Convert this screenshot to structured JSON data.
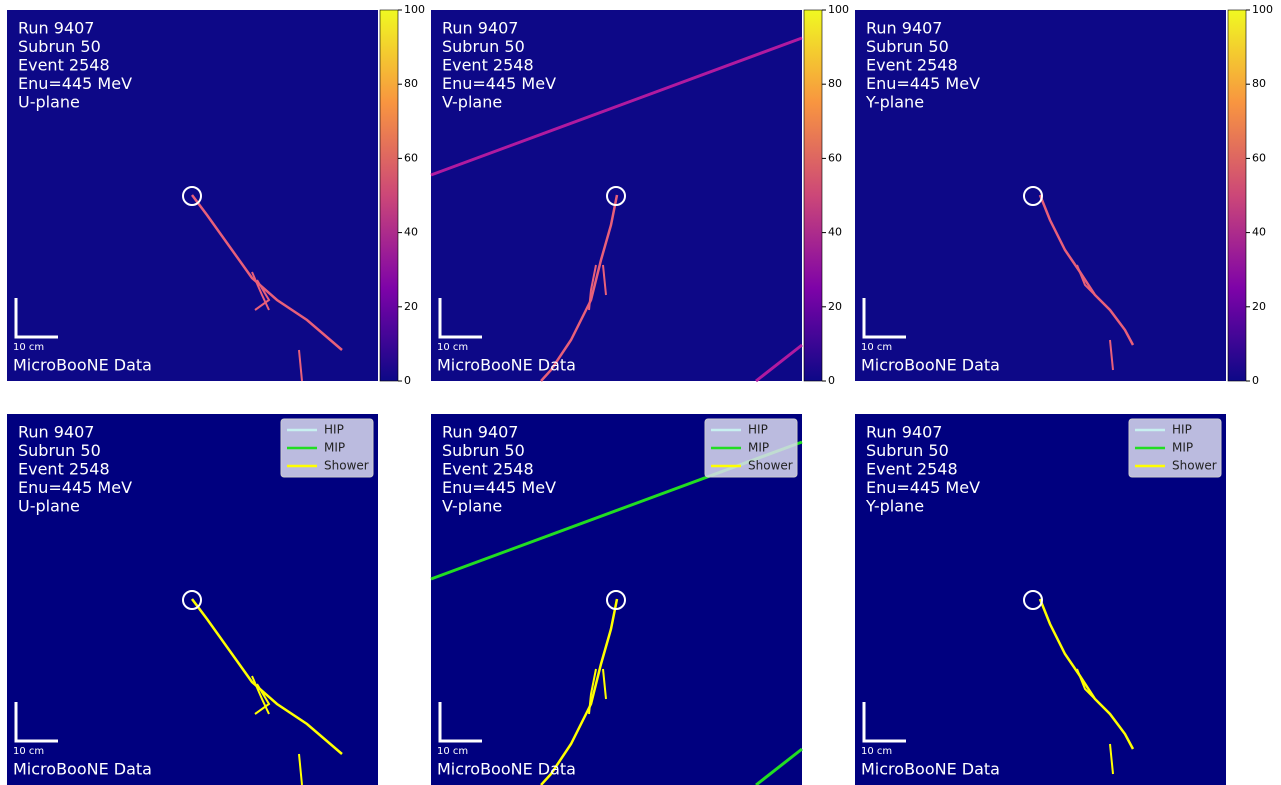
{
  "panels": [
    {
      "labels": [
        "Run 9407",
        "Subrun 50",
        "Event 2548",
        "Enu=445 MeV",
        "U-plane"
      ],
      "scale_label": "10 cm",
      "watermark": "MicroBooNE Data",
      "colorbar_range": [
        0,
        100
      ],
      "colorbar_ticks": [
        0,
        20,
        40,
        60,
        80,
        100
      ]
    },
    {
      "labels": [
        "Run 9407",
        "Subrun 50",
        "Event 2548",
        "Enu=445 MeV",
        "V-plane"
      ],
      "scale_label": "10 cm",
      "watermark": "MicroBooNE Data",
      "colorbar_range": [
        0,
        100
      ],
      "colorbar_ticks": [
        0,
        20,
        40,
        60,
        80,
        100
      ]
    },
    {
      "labels": [
        "Run 9407",
        "Subrun 50",
        "Event 2548",
        "Enu=445 MeV",
        "Y-plane"
      ],
      "scale_label": "10 cm",
      "watermark": "MicroBooNE Data",
      "colorbar_range": [
        0,
        100
      ],
      "colorbar_ticks": [
        0,
        20,
        40,
        60,
        80,
        100
      ]
    },
    {
      "labels": [
        "Run 9407",
        "Subrun 50",
        "Event 2548",
        "Enu=445 MeV",
        "U-plane"
      ],
      "scale_label": "10 cm",
      "watermark": "MicroBooNE Data",
      "legend": [
        "HIP",
        "MIP",
        "Shower"
      ]
    },
    {
      "labels": [
        "Run 9407",
        "Subrun 50",
        "Event 2548",
        "Enu=445 MeV",
        "V-plane"
      ],
      "scale_label": "10 cm",
      "watermark": "MicroBooNE Data",
      "legend": [
        "HIP",
        "MIP",
        "Shower"
      ]
    },
    {
      "labels": [
        "Run 9407",
        "Subrun 50",
        "Event 2548",
        "Enu=445 MeV",
        "Y-plane"
      ],
      "scale_label": "10 cm",
      "watermark": "MicroBooNE Data",
      "legend": [
        "HIP",
        "MIP",
        "Shower"
      ]
    }
  ]
}
